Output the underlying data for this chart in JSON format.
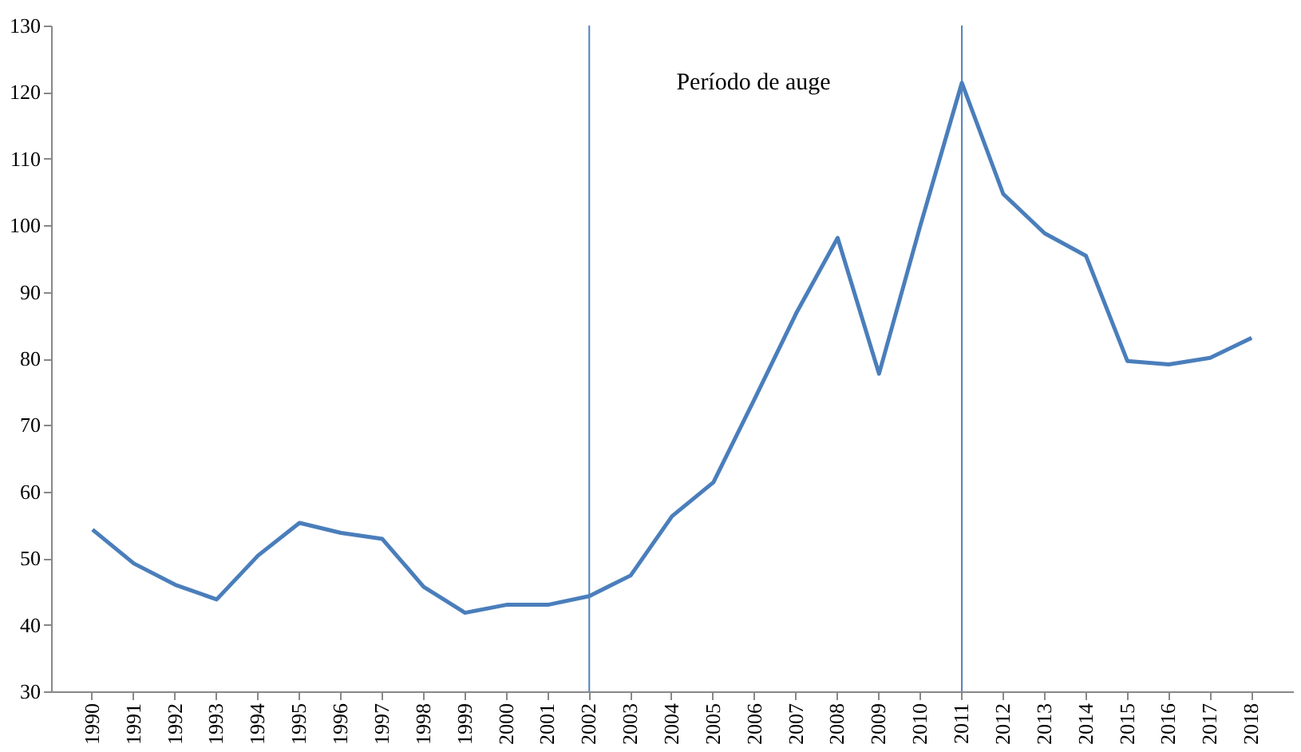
{
  "chart_data": {
    "type": "line",
    "categories": [
      "1990",
      "1991",
      "1992",
      "1993",
      "1994",
      "1995",
      "1996",
      "1997",
      "1998",
      "1999",
      "2000",
      "2001",
      "2002",
      "2003",
      "2004",
      "2005",
      "2006",
      "2007",
      "2008",
      "2009",
      "2010",
      "2011",
      "2012",
      "2013",
      "2014",
      "2015",
      "2016",
      "2017",
      "2018"
    ],
    "series": [
      {
        "color": "#4a7ebb",
        "values": [
          54.3,
          49.2,
          46.0,
          43.8,
          50.4,
          55.3,
          53.8,
          52.9,
          45.7,
          41.8,
          43.0,
          43.0,
          44.3,
          47.4,
          56.3,
          61.4,
          74.0,
          86.8,
          98.1,
          77.7,
          100.0,
          121.4,
          104.7,
          98.8,
          95.4,
          79.6,
          79.1,
          80.1,
          83.1
        ]
      }
    ],
    "ylim": [
      30,
      130
    ],
    "yticks": [
      30,
      40,
      50,
      60,
      70,
      80,
      90,
      100,
      110,
      120,
      130
    ],
    "ref_lines": [
      {
        "axis": "x",
        "value": "2002",
        "color": "#4f81bd"
      },
      {
        "axis": "x",
        "value": "2011",
        "color": "#4f81bd"
      }
    ],
    "annotations": [
      "Período de auge"
    ],
    "grid": false,
    "marker": "none",
    "line_style": "solid"
  }
}
